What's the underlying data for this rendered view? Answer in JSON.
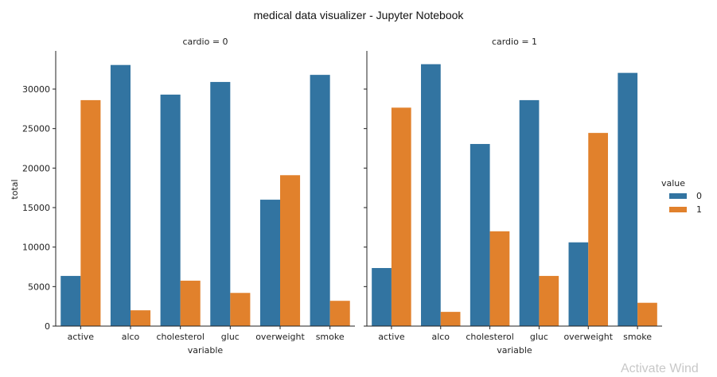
{
  "window": {
    "title": "medical data visualizer - Jupyter Notebook",
    "watermark": "Activate Wind"
  },
  "chart_data": {
    "type": "bar",
    "title": "",
    "xlabel": "variable",
    "ylabel": "total",
    "ylim": [
      0,
      34500
    ],
    "yticks": [
      0,
      5000,
      10000,
      15000,
      20000,
      25000,
      30000
    ],
    "ytick_labels": [
      "0",
      "5000",
      "10000",
      "15000",
      "20000",
      "25000",
      "30000"
    ],
    "categories": [
      "active",
      "alco",
      "cholesterol",
      "gluc",
      "overweight",
      "smoke"
    ],
    "legend": {
      "title": "value",
      "entries": [
        "0",
        "1"
      ],
      "placement": "right"
    },
    "colors": {
      "0": "#3274a1",
      "1": "#e1812c"
    },
    "facets": [
      {
        "title": "cardio = 0",
        "series": [
          {
            "name": "0",
            "values": [
              6350,
              33050,
              29300,
              30900,
              16000,
              31800
            ]
          },
          {
            "name": "1",
            "values": [
              28600,
              2000,
              5750,
              4200,
              19100,
              3200
            ]
          }
        ]
      },
      {
        "title": "cardio = 1",
        "series": [
          {
            "name": "0",
            "values": [
              7350,
              33150,
              23050,
              28600,
              10600,
              32050
            ]
          },
          {
            "name": "1",
            "values": [
              27650,
              1800,
              12000,
              6350,
              24450,
              2950
            ]
          }
        ]
      }
    ],
    "grid": false
  }
}
